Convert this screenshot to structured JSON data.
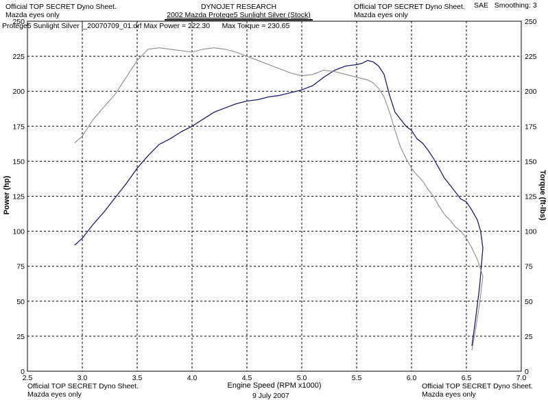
{
  "header": {
    "company": "DYNOJET RESEARCH",
    "vehicle": "2002 Mazda Protege5 Sunlight Silver (Stock)",
    "sae": "SAE",
    "smoothing": "Smoothing: 3"
  },
  "notices": {
    "top_left": [
      "Official TOP SECRET Dyno Sheet.",
      "Mazda eyes only"
    ],
    "top_right": [
      "Official TOP SECRET Dyno Sheet.",
      "Mazda eyes only"
    ],
    "bottom_left": [
      "Official TOP SECRET Dyno Sheet.",
      "Mazda eyes only"
    ],
    "bottom_right": [
      "Official TOP SECRET Dyno Sheet.",
      "Mazda eyes only"
    ]
  },
  "run_info": {
    "file": "Protege5 Sunlight Silver |_20070709_01.drf",
    "max_power": "Max Power = 222.30",
    "max_torque": "Max Torque = 230.65"
  },
  "date": "9 July 2007",
  "chart_data": {
    "type": "line",
    "xlabel": "Engine Speed (RPM x1000)",
    "ylabel": "Power (hp)",
    "y2label": "Torque (ft-lbs)",
    "xlim": [
      2.5,
      7.0
    ],
    "ylim": [
      0,
      250
    ],
    "y2lim": [
      0,
      250
    ],
    "x_ticks": [
      "2.5",
      "3.0",
      "3.5",
      "4.0",
      "4.5",
      "5.0",
      "5.5",
      "6.0",
      "6.5",
      "7.0"
    ],
    "y_ticks": [
      "0",
      "25",
      "50",
      "75",
      "100",
      "125",
      "150",
      "175",
      "200",
      "225",
      "250"
    ],
    "grid": true,
    "series": [
      {
        "color": "#1a1a6e",
        "x": [
          2.93,
          3.0,
          3.1,
          3.2,
          3.3,
          3.4,
          3.5,
          3.6,
          3.7,
          3.8,
          3.9,
          4.0,
          4.1,
          4.2,
          4.3,
          4.4,
          4.5,
          4.6,
          4.7,
          4.8,
          4.9,
          5.0,
          5.1,
          5.2,
          5.3,
          5.4,
          5.5,
          5.55,
          5.6,
          5.65,
          5.7,
          5.75,
          5.8,
          5.85,
          5.9,
          5.95,
          6.0,
          6.05,
          6.1,
          6.15,
          6.2,
          6.25,
          6.3,
          6.35,
          6.4,
          6.45,
          6.5,
          6.55,
          6.6,
          6.63,
          6.65,
          6.62,
          6.58,
          6.55
        ],
        "y": [
          90,
          95,
          105,
          114,
          124,
          134,
          145,
          154,
          162,
          166,
          171,
          175,
          180,
          185,
          188,
          191,
          193,
          194,
          196,
          197,
          199,
          201,
          204,
          210,
          215,
          218,
          219,
          220,
          222,
          221,
          218,
          212,
          197,
          185,
          180,
          175,
          172,
          166,
          163,
          158,
          152,
          145,
          138,
          133,
          128,
          123,
          121,
          115,
          108,
          100,
          88,
          60,
          35,
          18
        ]
      },
      {
        "color": "#8a8a8a",
        "x": [
          2.93,
          3.0,
          3.1,
          3.2,
          3.3,
          3.4,
          3.5,
          3.6,
          3.7,
          3.8,
          3.9,
          4.0,
          4.1,
          4.2,
          4.3,
          4.4,
          4.5,
          4.6,
          4.7,
          4.8,
          4.9,
          5.0,
          5.1,
          5.2,
          5.3,
          5.4,
          5.5,
          5.6,
          5.65,
          5.7,
          5.75,
          5.8,
          5.85,
          5.9,
          5.95,
          6.0,
          6.05,
          6.1,
          6.15,
          6.2,
          6.25,
          6.3,
          6.35,
          6.4,
          6.45,
          6.5,
          6.55,
          6.6,
          6.65,
          6.62,
          6.58,
          6.55
        ],
        "y": [
          163,
          168,
          180,
          189,
          198,
          210,
          222,
          230,
          231,
          230,
          229,
          228,
          230,
          231,
          230,
          228,
          225,
          222,
          219,
          216,
          213,
          211,
          212,
          215,
          214,
          212,
          210,
          208,
          206,
          202,
          196,
          185,
          172,
          160,
          152,
          145,
          140,
          136,
          130,
          125,
          118,
          112,
          108,
          103,
          100,
          95,
          88,
          80,
          68,
          48,
          28,
          15
        ]
      }
    ]
  }
}
